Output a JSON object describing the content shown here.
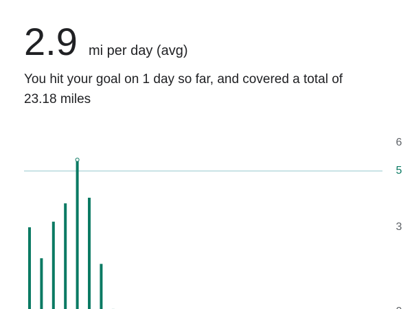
{
  "header": {
    "average": "2.9",
    "unit": "mi per day (avg)",
    "summary_lines": [
      "You hit your goal on 1 day so far, and covered a total of",
      "23.18 miles"
    ]
  },
  "chart_data": {
    "type": "bar",
    "categories": [
      null,
      null,
      null,
      null,
      null,
      null,
      null,
      null
    ],
    "values": [
      3.0,
      1.9,
      3.2,
      3.85,
      5.4,
      4.05,
      1.7,
      0.1
    ],
    "color": "#0b7a63",
    "goal": 5,
    "goal_color": "#c9e3e6",
    "ylim": [
      0,
      6
    ],
    "yticks": [
      0,
      3,
      5,
      6
    ]
  }
}
